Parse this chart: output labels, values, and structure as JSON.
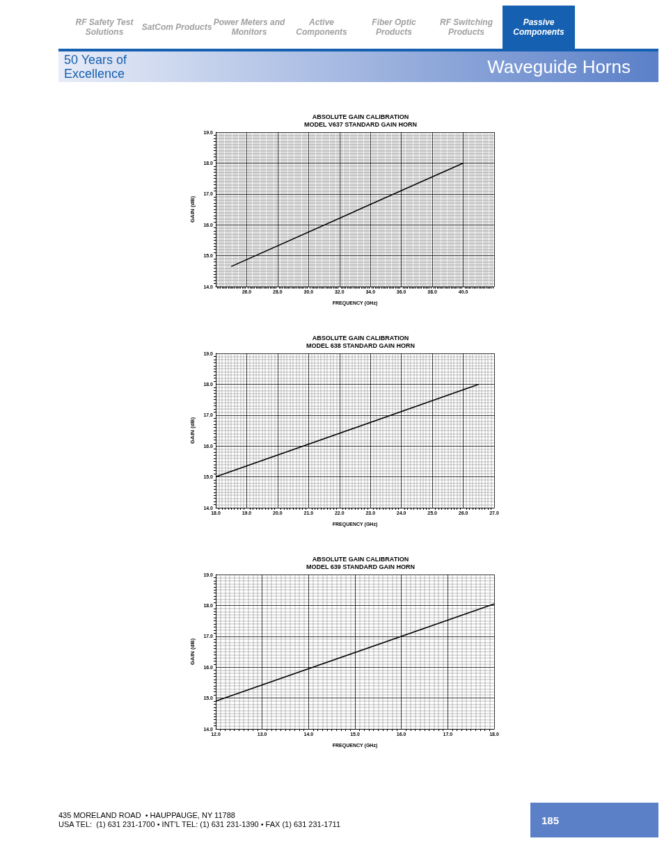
{
  "chart_data": [
    {
      "type": "line",
      "title": "ABSOLUTE GAIN CALIBRATION",
      "subtitle": "MODEL V637 STANDARD GAIN HORN",
      "xlabel": "FREQUENCY (GHz)",
      "ylabel": "GAIN (dB)",
      "annotations": [
        "RF Safety Test Solutions",
        "SatCom Products",
        "Power Meters and Monitors",
        "Active Components",
        "Fiber Optic Products",
        "RF Switching Products",
        "Passive Components",
        "50 Years of Excellence",
        "Waveguide Horns"
      ],
      "x": [
        25.0,
        40.0
      ],
      "series": [
        {
          "color": "#000000",
          "values": [
            14.65,
            18.0
          ]
        }
      ],
      "xlim": [
        24,
        42
      ],
      "xticks": [
        {
          "value": 26,
          "label": "26.0"
        },
        {
          "value": 28,
          "label": "28.0"
        },
        {
          "value": 30,
          "label": "30.0"
        },
        {
          "value": 32,
          "label": "32.0"
        },
        {
          "value": 34,
          "label": "34.0"
        },
        {
          "value": 36,
          "label": "36.0"
        },
        {
          "value": 38,
          "label": "38.0"
        },
        {
          "value": 40,
          "label": "40.0"
        }
      ],
      "ylim": [
        14,
        19
      ],
      "yticks": [
        {
          "value": 14,
          "label": "14.0"
        },
        {
          "value": 15,
          "label": "15.0"
        },
        {
          "value": 16,
          "label": "16.0"
        },
        {
          "value": 17,
          "label": "17.0"
        },
        {
          "value": 18,
          "label": "18.0"
        },
        {
          "value": 19,
          "label": "19.0"
        }
      ],
      "grid": true,
      "marker": "none",
      "line_style": "solid"
    },
    {
      "type": "line",
      "title": "ABSOLUTE GAIN CALIBRATION",
      "subtitle": "MODEL 638 STANDARD GAIN HORN",
      "xlabel": "FREQUENCY (GHz)",
      "ylabel": "GAIN (dB)",
      "x": [
        18.0,
        26.5
      ],
      "series": [
        {
          "color": "#000000",
          "values": [
            15.0,
            18.0
          ]
        }
      ],
      "xlim": [
        18,
        27
      ],
      "xticks": [
        {
          "value": 18,
          "label": "18.0"
        },
        {
          "value": 19,
          "label": "19.0"
        },
        {
          "value": 20,
          "label": "20.0"
        },
        {
          "value": 21,
          "label": "21.0"
        },
        {
          "value": 22,
          "label": "22.0"
        },
        {
          "value": 23,
          "label": "23.0"
        },
        {
          "value": 24,
          "label": "24.0"
        },
        {
          "value": 25,
          "label": "25.0"
        },
        {
          "value": 26,
          "label": "26.0"
        },
        {
          "value": 27,
          "label": "27.0"
        }
      ],
      "ylim": [
        14,
        19
      ],
      "yticks": [
        {
          "value": 14,
          "label": "14.0"
        },
        {
          "value": 15,
          "label": "15.0"
        },
        {
          "value": 16,
          "label": "16.0"
        },
        {
          "value": 17,
          "label": "17.0"
        },
        {
          "value": 18,
          "label": "18.0"
        },
        {
          "value": 19,
          "label": "19.0"
        }
      ],
      "grid": true,
      "marker": "none",
      "line_style": "solid"
    },
    {
      "type": "line",
      "title": "ABSOLUTE GAIN CALIBRATION",
      "subtitle": "MODEL 639 STANDARD GAIN HORN",
      "xlabel": "FREQUENCY (GHz)",
      "ylabel": "GAIN (dB)",
      "annotations": [
        "435 MORELAND ROAD  • HAUPPAUGE, NY 11788",
        "USA TEL:  (1) 631 231-1700 • INT'L TEL: (1) 631 231-1390 • FAX (1) 631 231-1711",
        "185"
      ],
      "x": [
        12.0,
        18.0
      ],
      "series": [
        {
          "color": "#000000",
          "values": [
            14.9,
            18.05
          ]
        }
      ],
      "xlim": [
        12,
        18
      ],
      "xticks": [
        {
          "value": 12,
          "label": "12.0"
        },
        {
          "value": 13,
          "label": "13.0"
        },
        {
          "value": 14,
          "label": "14.0"
        },
        {
          "value": 15,
          "label": "15.0"
        },
        {
          "value": 16,
          "label": "16.0"
        },
        {
          "value": 17,
          "label": "17.0"
        },
        {
          "value": 18,
          "label": "18.0"
        }
      ],
      "ylim": [
        14,
        19
      ],
      "yticks": [
        {
          "value": 14,
          "label": "14.0"
        },
        {
          "value": 15,
          "label": "15.0"
        },
        {
          "value": 16,
          "label": "16.0"
        },
        {
          "value": 17,
          "label": "17.0"
        },
        {
          "value": 18,
          "label": "18.0"
        },
        {
          "value": 19,
          "label": "19.0"
        }
      ],
      "grid": true,
      "marker": "none",
      "line_style": "solid"
    }
  ]
}
